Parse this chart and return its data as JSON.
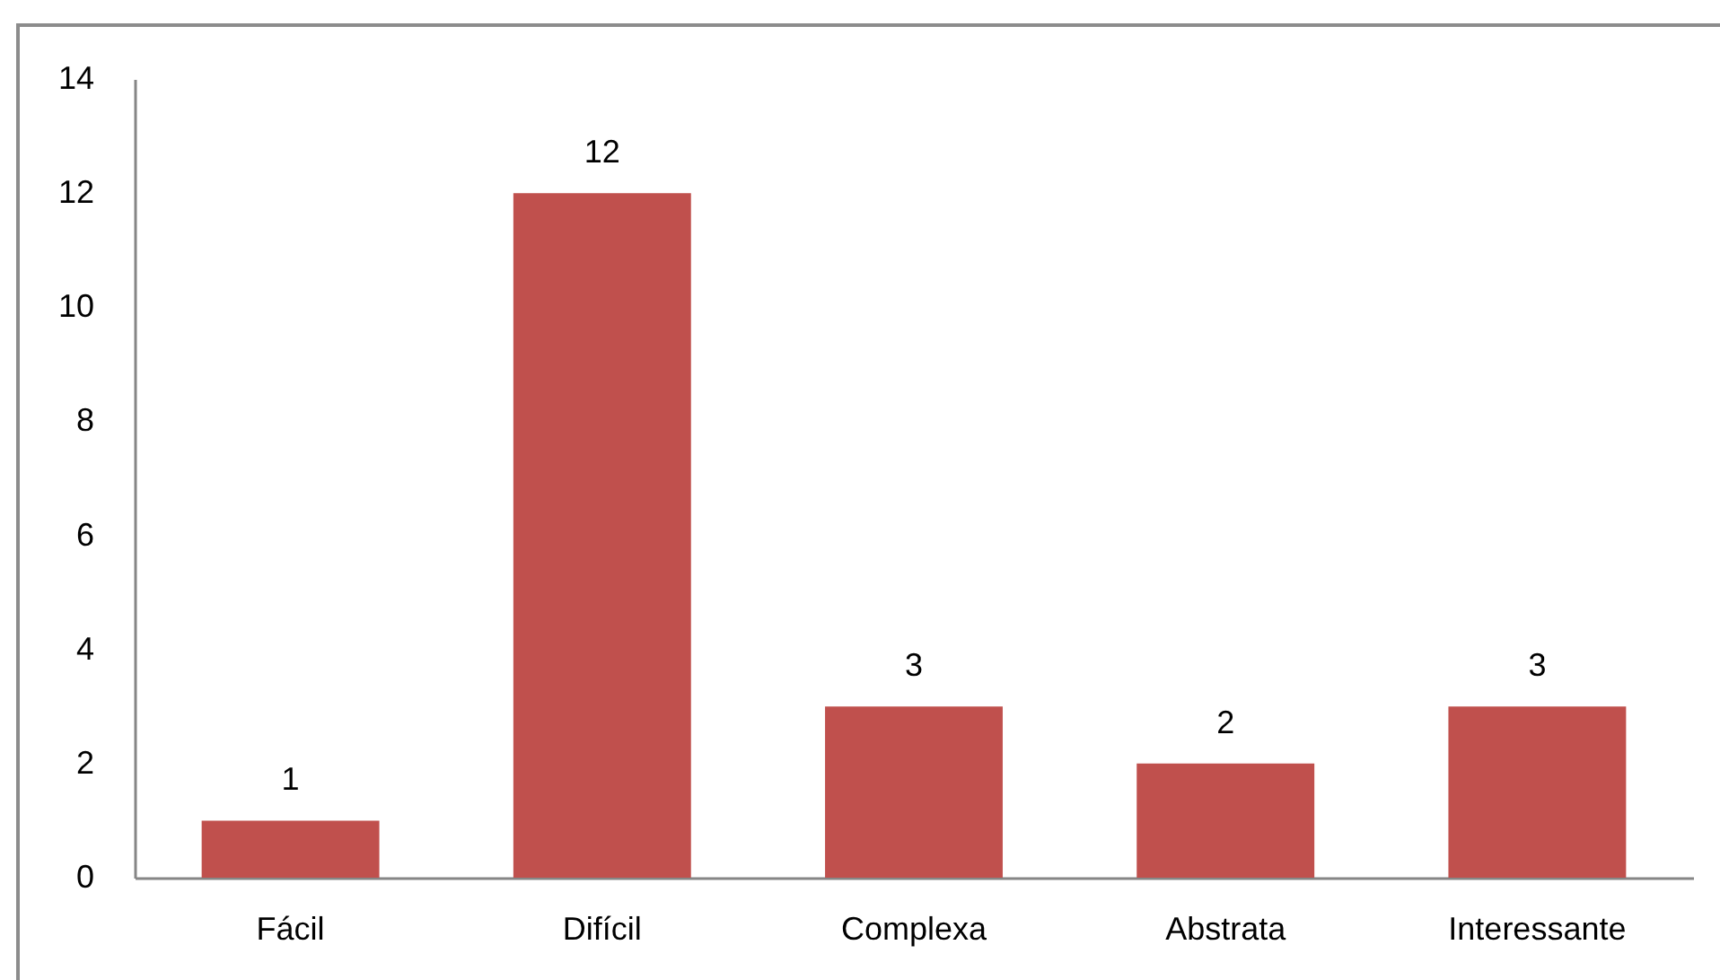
{
  "chart_data": {
    "type": "bar",
    "categories": [
      "Fácil",
      "Difícil",
      "Complexa",
      "Abstrata",
      "Interessante"
    ],
    "values": [
      1,
      12,
      3,
      2,
      3
    ],
    "color": "#c0504d",
    "ylim": [
      0,
      14
    ],
    "yticks": [
      0,
      2,
      4,
      6,
      8,
      10,
      12,
      14
    ],
    "data_labels": true
  }
}
